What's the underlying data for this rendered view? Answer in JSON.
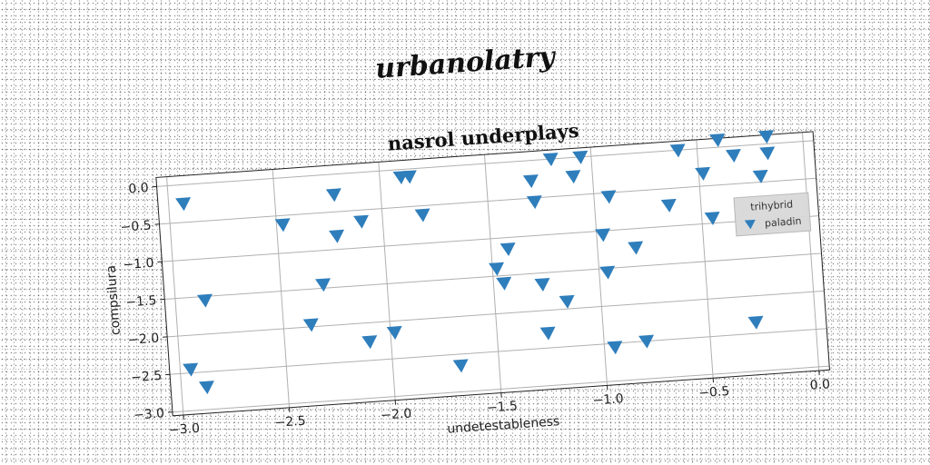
{
  "super_title": "urbanolatry",
  "chart_data": {
    "type": "scatter",
    "title": "nasrol underplays",
    "xlabel": "undetestableness",
    "ylabel": "compsilura",
    "xlim": [
      -3.05,
      0.05
    ],
    "ylim": [
      -3.05,
      0.12
    ],
    "xticks": [
      -3.0,
      -2.5,
      -2.0,
      -1.5,
      -1.0,
      -0.5,
      0.0
    ],
    "xtick_labels": [
      "−3.0",
      "−2.5",
      "−2.0",
      "−1.5",
      "−1.0",
      "−0.5",
      "0.0"
    ],
    "yticks": [
      0.0,
      -0.5,
      -1.0,
      -1.5,
      -2.0,
      -2.5,
      -3.0
    ],
    "ytick_labels": [
      "0.0",
      "−0.5",
      "−1.0",
      "−1.5",
      "−2.0",
      "−2.5",
      "−3.0"
    ],
    "grid": true,
    "legend": {
      "title": "trihybrid",
      "placement": "right"
    },
    "series": [
      {
        "name": "paladin",
        "marker": "triangle-down",
        "color": "#2f7ebc",
        "points": [
          [
            -2.93,
            -0.25
          ],
          [
            -2.95,
            -2.45
          ],
          [
            -2.88,
            -2.7
          ],
          [
            -2.86,
            -1.55
          ],
          [
            -2.47,
            -0.62
          ],
          [
            -2.37,
            -1.97
          ],
          [
            -2.3,
            -1.45
          ],
          [
            -2.22,
            -0.27
          ],
          [
            -2.22,
            -0.82
          ],
          [
            -2.1,
            -0.65
          ],
          [
            -2.1,
            -2.25
          ],
          [
            -1.98,
            -2.15
          ],
          [
            -1.9,
            -0.1
          ],
          [
            -1.86,
            -0.1
          ],
          [
            -1.81,
            -0.62
          ],
          [
            -1.68,
            -2.65
          ],
          [
            -1.48,
            -1.4
          ],
          [
            -1.45,
            -1.6
          ],
          [
            -1.42,
            -1.15
          ],
          [
            -1.29,
            -0.27
          ],
          [
            -1.28,
            -0.55
          ],
          [
            -1.27,
            -1.65
          ],
          [
            -1.26,
            -2.3
          ],
          [
            -1.19,
            0.0
          ],
          [
            -1.16,
            -1.9
          ],
          [
            -1.09,
            -0.25
          ],
          [
            -1.05,
            0.0
          ],
          [
            -0.97,
            -1.05
          ],
          [
            -0.96,
            -1.55
          ],
          [
            -0.93,
            -0.55
          ],
          [
            -0.95,
            -2.55
          ],
          [
            -0.82,
            -1.25
          ],
          [
            -0.8,
            -2.5
          ],
          [
            -0.65,
            -0.72
          ],
          [
            -0.59,
            0.0
          ],
          [
            -0.48,
            -0.33
          ],
          [
            -0.45,
            -0.93
          ],
          [
            -0.4,
            0.1
          ],
          [
            -0.33,
            -0.12
          ],
          [
            -0.28,
            -2.35
          ],
          [
            -0.21,
            -0.42
          ],
          [
            -0.17,
            -0.12
          ],
          [
            -0.17,
            0.1
          ]
        ]
      }
    ]
  }
}
